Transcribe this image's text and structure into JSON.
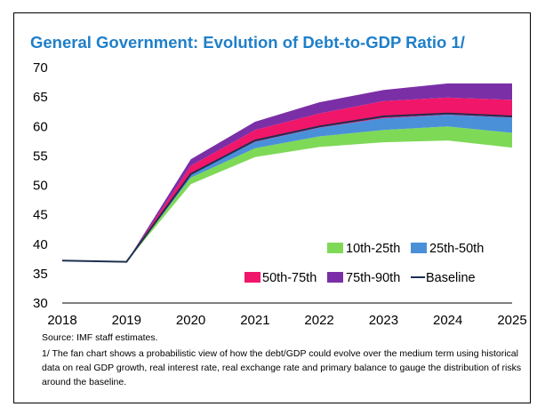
{
  "title": "General Government: Evolution of Debt-to-GDP Ratio 1/",
  "source": "Source: IMF staff estimates.",
  "footnote": "1/ The fan chart shows a probabilistic view of how the debt/GDP could evolve over the medium term using historical data on real GDP growth, real interest rate, real exchange rate and primary balance to gauge the distribution of risks around the baseline.",
  "colors": {
    "p10_25": "#7ed957",
    "p25_50": "#4a90d9",
    "p50_75": "#f0166a",
    "p75_90": "#7b2fa6",
    "baseline": "#1f2f4f",
    "title": "#1f7fc9"
  },
  "chart_data": {
    "type": "area",
    "x": [
      2018,
      2019,
      2020,
      2021,
      2022,
      2023,
      2024,
      2025
    ],
    "ylim": [
      30,
      70
    ],
    "yticks": [
      30,
      35,
      40,
      45,
      50,
      55,
      60,
      65,
      70
    ],
    "xticks": [
      "2018",
      "2019",
      "2020",
      "2021",
      "2022",
      "2023",
      "2024",
      "2025"
    ],
    "grid": false,
    "bands": {
      "p10": [
        37.2,
        37.0,
        50.2,
        54.8,
        56.5,
        57.3,
        57.6,
        56.4
      ],
      "p25": [
        37.2,
        37.0,
        51.3,
        56.3,
        58.3,
        59.4,
        60.0,
        58.9
      ],
      "p50": [
        37.2,
        37.0,
        52.0,
        57.4,
        59.8,
        61.4,
        62.0,
        61.5
      ],
      "p75": [
        37.2,
        37.0,
        53.3,
        59.4,
        62.2,
        64.3,
        64.9,
        64.5
      ],
      "p90": [
        37.2,
        37.0,
        54.4,
        60.8,
        64.1,
        66.2,
        67.3,
        67.3
      ]
    },
    "baseline": [
      37.2,
      37.0,
      51.9,
      57.6,
      60.0,
      61.7,
      62.2,
      61.7
    ],
    "legend": {
      "p10_25": "10th-25th",
      "p25_50": "25th-50th",
      "p50_75": "50th-75th",
      "p75_90": "75th-90th",
      "baseline": "Baseline"
    }
  }
}
